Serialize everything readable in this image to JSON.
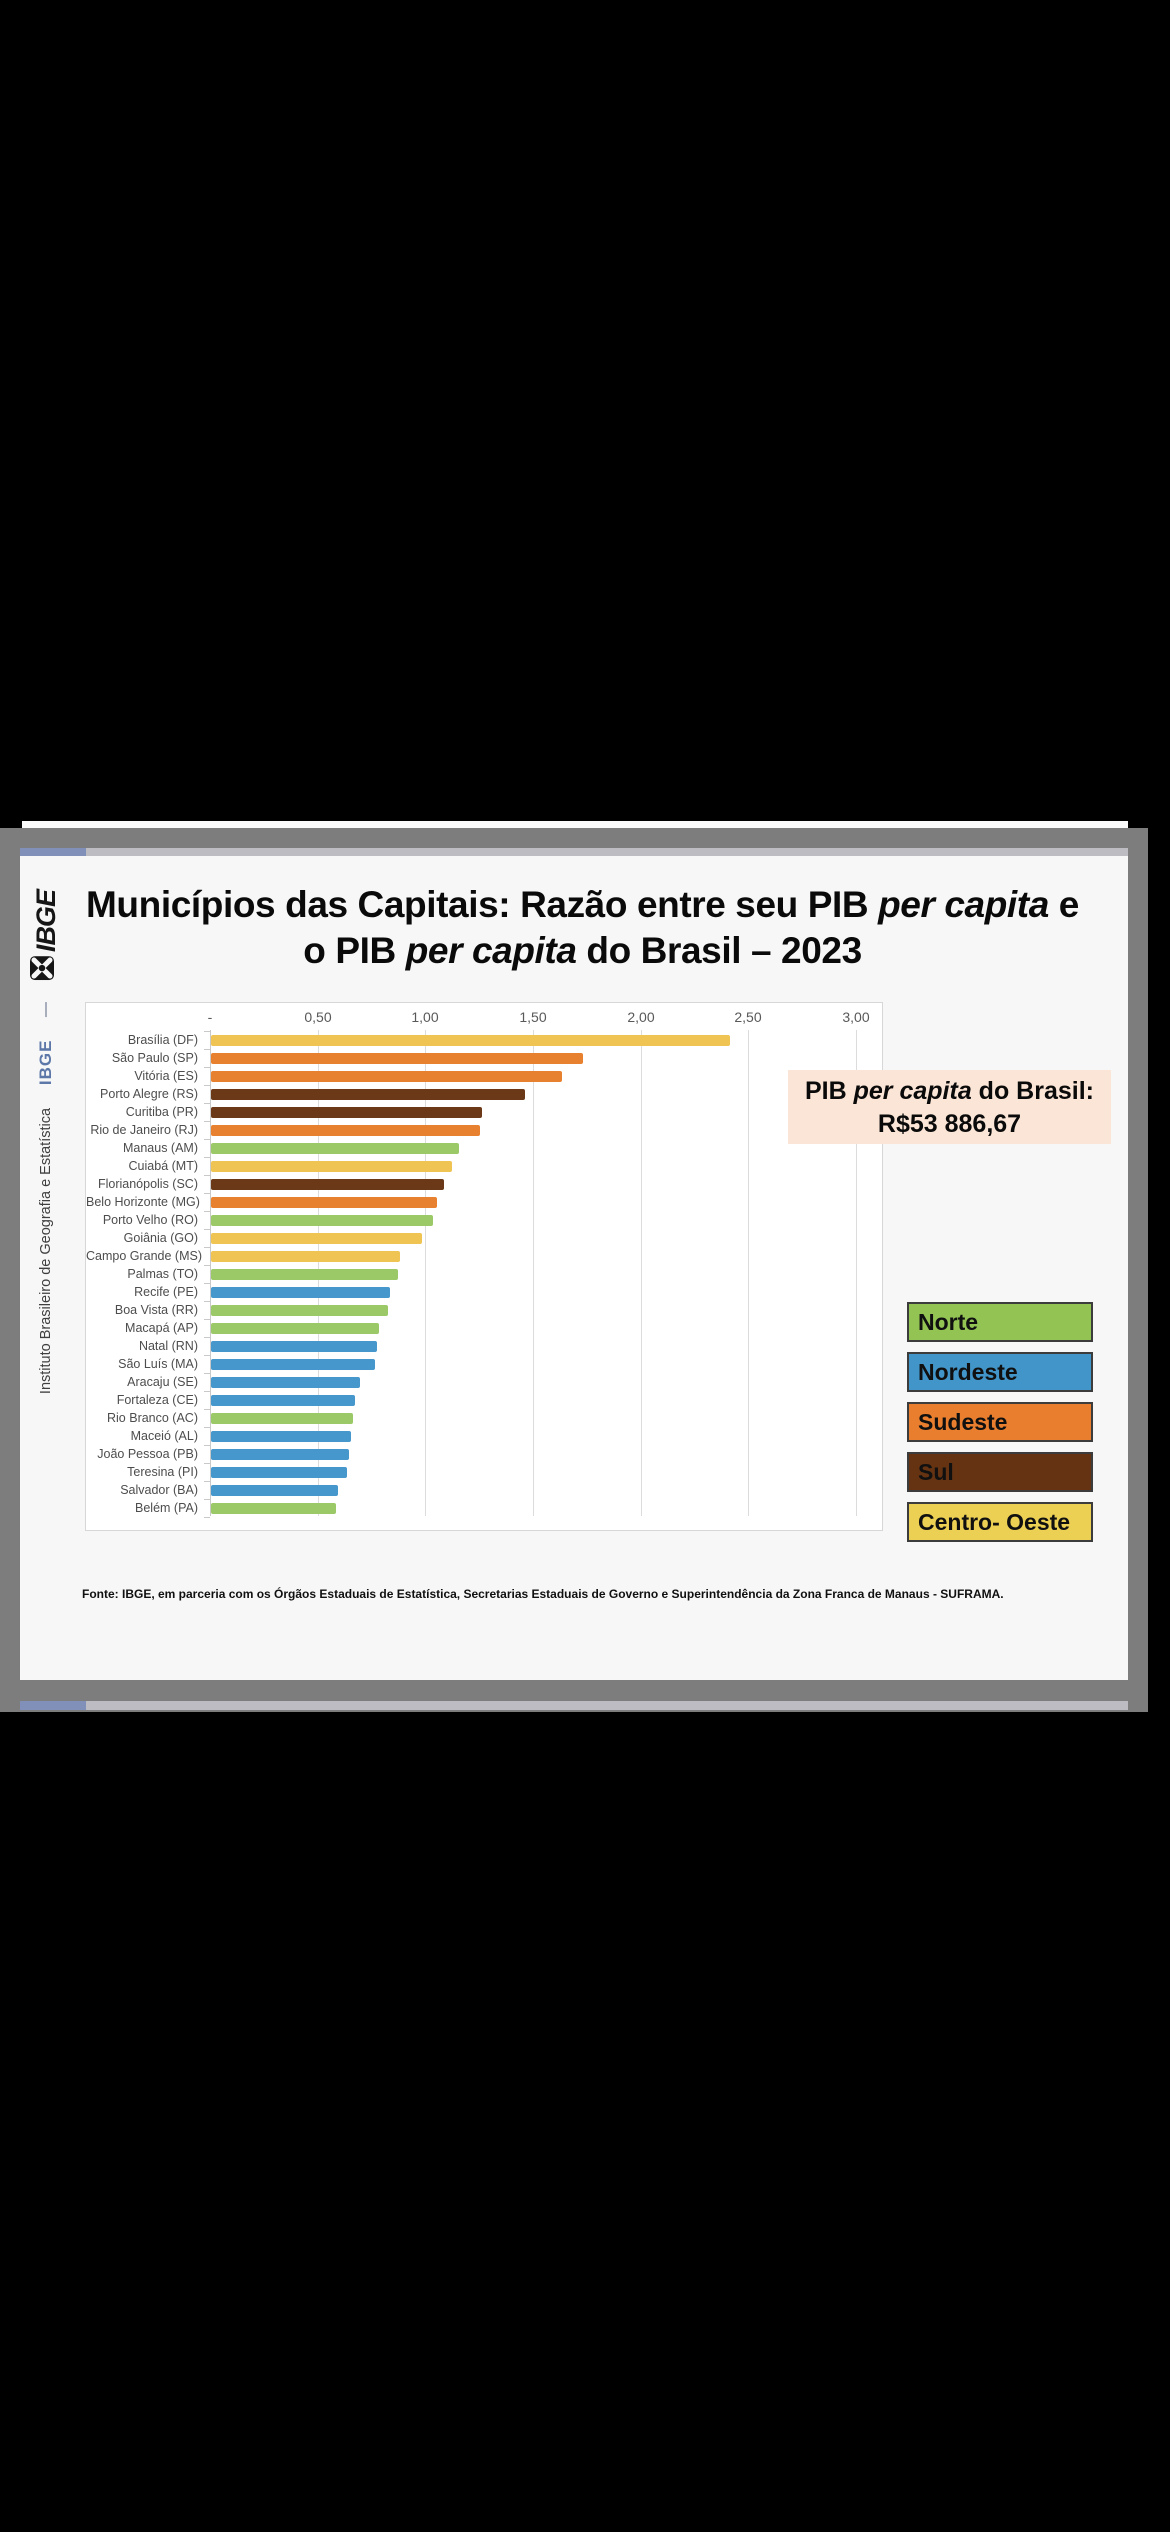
{
  "title": {
    "line1": {
      "a": "Municípios das Capitais: Razão entre seu PIB ",
      "b_italic": "per capita",
      "c": " e"
    },
    "line2": {
      "a": "o PIB ",
      "b_italic": "per capita",
      "c": " do Brasil – 2023"
    }
  },
  "sidebar": {
    "logo_text": "IBGE",
    "acronym": "IBGE",
    "institute": "Instituto Brasileiro de Geografia e Estatística"
  },
  "pib_note": {
    "a": "PIB ",
    "b_italic": "per capita",
    "c": " do Brasil:",
    "value": "R$53 886,67"
  },
  "regions": {
    "Norte": {
      "bar": "#9CC968",
      "legend": "#92C353"
    },
    "Nordeste": {
      "bar": "#4697CB",
      "legend": "#4295C8"
    },
    "Sudeste": {
      "bar": "#E8812F",
      "legend": "#E87E2E"
    },
    "Sul": {
      "bar": "#6B3918",
      "legend": "#653312"
    },
    "Centro-Oeste": {
      "bar": "#F0C452",
      "legend": "#ECD053"
    }
  },
  "legend": {
    "items": [
      {
        "label": "Norte",
        "region": "Norte"
      },
      {
        "label": "Nordeste",
        "region": "Nordeste"
      },
      {
        "label": "Sudeste",
        "region": "Sudeste"
      },
      {
        "label": "Sul",
        "region": "Sul"
      },
      {
        "label": "Centro- Oeste",
        "region": "Centro-Oeste"
      }
    ]
  },
  "chart_data": {
    "type": "bar",
    "orientation": "horizontal",
    "title": "Municípios das Capitais: Razão entre seu PIB per capita e o PIB per capita do Brasil – 2023",
    "xlabel": "",
    "ylabel": "",
    "xlim": [
      0,
      3.13
    ],
    "grid": true,
    "x_ticks": [
      {
        "label": "-",
        "value": 0
      },
      {
        "label": "0,50",
        "value": 0.5
      },
      {
        "label": "1,00",
        "value": 1.0
      },
      {
        "label": "1,50",
        "value": 1.5
      },
      {
        "label": "2,00",
        "value": 2.0
      },
      {
        "label": "2,50",
        "value": 2.5
      },
      {
        "label": "3,00",
        "value": 3.0
      }
    ],
    "rows": [
      {
        "city": "Brasília (DF)",
        "region": "Centro-Oeste",
        "value": 2.41
      },
      {
        "city": "São Paulo (SP)",
        "region": "Sudeste",
        "value": 1.73
      },
      {
        "city": "Vitória (ES)",
        "region": "Sudeste",
        "value": 1.63
      },
      {
        "city": "Porto Alegre (RS)",
        "region": "Sul",
        "value": 1.46
      },
      {
        "city": "Curitiba (PR)",
        "region": "Sul",
        "value": 1.26
      },
      {
        "city": "Rio de Janeiro (RJ)",
        "region": "Sudeste",
        "value": 1.25
      },
      {
        "city": "Manaus (AM)",
        "region": "Norte",
        "value": 1.15
      },
      {
        "city": "Cuiabá (MT)",
        "region": "Centro-Oeste",
        "value": 1.12
      },
      {
        "city": "Florianópolis (SC)",
        "region": "Sul",
        "value": 1.08
      },
      {
        "city": "Belo Horizonte (MG)",
        "region": "Sudeste",
        "value": 1.05
      },
      {
        "city": "Porto Velho (RO)",
        "region": "Norte",
        "value": 1.03
      },
      {
        "city": "Goiânia (GO)",
        "region": "Centro-Oeste",
        "value": 0.98
      },
      {
        "city": "Campo Grande (MS)",
        "region": "Centro-Oeste",
        "value": 0.88
      },
      {
        "city": "Palmas (TO)",
        "region": "Norte",
        "value": 0.87
      },
      {
        "city": "Recife (PE)",
        "region": "Nordeste",
        "value": 0.83
      },
      {
        "city": "Boa Vista (RR)",
        "region": "Norte",
        "value": 0.82
      },
      {
        "city": "Macapá (AP)",
        "region": "Norte",
        "value": 0.78
      },
      {
        "city": "Natal (RN)",
        "region": "Nordeste",
        "value": 0.77
      },
      {
        "city": "São Luís (MA)",
        "region": "Nordeste",
        "value": 0.76
      },
      {
        "city": "Aracaju (SE)",
        "region": "Nordeste",
        "value": 0.69
      },
      {
        "city": "Fortaleza (CE)",
        "region": "Nordeste",
        "value": 0.67
      },
      {
        "city": "Rio Branco (AC)",
        "region": "Norte",
        "value": 0.66
      },
      {
        "city": "Maceió (AL)",
        "region": "Nordeste",
        "value": 0.65
      },
      {
        "city": "João Pessoa (PB)",
        "region": "Nordeste",
        "value": 0.64
      },
      {
        "city": "Teresina (PI)",
        "region": "Nordeste",
        "value": 0.63
      },
      {
        "city": "Salvador (BA)",
        "region": "Nordeste",
        "value": 0.59
      },
      {
        "city": "Belém (PA)",
        "region": "Norte",
        "value": 0.58
      }
    ]
  },
  "source": {
    "text": "Fonte: IBGE, em parceria com os Órgãos Estaduais de Estatística, Secretarias Estaduais de Governo e Superintendência da Zona Franca de Manaus - SUFRAMA."
  }
}
